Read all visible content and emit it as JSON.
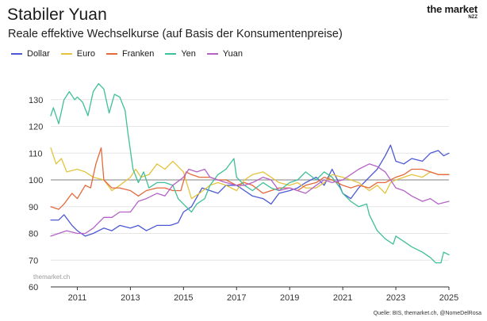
{
  "header": {
    "title": "Stabiler Yuan",
    "subtitle": "Reale effektive Wechselkurse (auf Basis der Konsumentenpreise)",
    "brand": "the market",
    "brand_sub": "NZZ"
  },
  "watermark": "themarket.ch",
  "source": "Quelle: BIS, themarket.ch, @NomeDelRosa",
  "chart_data": {
    "type": "line",
    "title": "Stabiler Yuan",
    "subtitle": "Reale effektive Wechselkurse (auf Basis der Konsumentenpreise)",
    "xlabel": "",
    "ylabel": "",
    "xlim": [
      2010.0,
      2025.0
    ],
    "ylim": [
      60,
      140
    ],
    "x_ticks": [
      2011,
      2013,
      2015,
      2017,
      2019,
      2021,
      2023,
      2025
    ],
    "x_tick_labels": [
      "2011",
      "2013",
      "2015",
      "2017",
      "2019",
      "2021",
      "2023",
      "2025"
    ],
    "y_ticks": [
      60,
      70,
      80,
      90,
      100,
      110,
      120,
      130
    ],
    "y_tick_labels": [
      "60",
      "70",
      "80",
      "90",
      "100",
      "110",
      "120",
      "130"
    ],
    "reference_line": 100,
    "grid": "horizontal",
    "legend_position": "top-left",
    "series": [
      {
        "name": "Dollar",
        "color": "#4c58d4",
        "points": [
          [
            2010.0,
            85
          ],
          [
            2010.3,
            85
          ],
          [
            2010.5,
            87
          ],
          [
            2010.8,
            83
          ],
          [
            2011.0,
            81
          ],
          [
            2011.3,
            79
          ],
          [
            2011.6,
            80
          ],
          [
            2012.0,
            82
          ],
          [
            2012.3,
            81
          ],
          [
            2012.6,
            83
          ],
          [
            2013.0,
            82
          ],
          [
            2013.3,
            83
          ],
          [
            2013.6,
            81
          ],
          [
            2014.0,
            83
          ],
          [
            2014.5,
            83
          ],
          [
            2014.8,
            84
          ],
          [
            2015.0,
            88
          ],
          [
            2015.3,
            90
          ],
          [
            2015.7,
            97
          ],
          [
            2016.0,
            96
          ],
          [
            2016.3,
            95
          ],
          [
            2016.6,
            98
          ],
          [
            2017.0,
            98
          ],
          [
            2017.3,
            96
          ],
          [
            2017.6,
            94
          ],
          [
            2018.0,
            93
          ],
          [
            2018.3,
            91
          ],
          [
            2018.6,
            95
          ],
          [
            2019.0,
            96
          ],
          [
            2019.3,
            97
          ],
          [
            2019.6,
            99
          ],
          [
            2020.0,
            101
          ],
          [
            2020.3,
            98
          ],
          [
            2020.6,
            104
          ],
          [
            2020.8,
            100
          ],
          [
            2021.0,
            95
          ],
          [
            2021.3,
            93
          ],
          [
            2021.6,
            97
          ],
          [
            2021.8,
            99
          ],
          [
            2022.0,
            101
          ],
          [
            2022.3,
            104
          ],
          [
            2022.6,
            109
          ],
          [
            2022.8,
            113
          ],
          [
            2023.0,
            107
          ],
          [
            2023.3,
            106
          ],
          [
            2023.6,
            108
          ],
          [
            2024.0,
            107
          ],
          [
            2024.3,
            110
          ],
          [
            2024.6,
            111
          ],
          [
            2024.8,
            109
          ],
          [
            2025.0,
            110
          ]
        ]
      },
      {
        "name": "Euro",
        "color": "#e3c43e",
        "points": [
          [
            2010.0,
            112
          ],
          [
            2010.2,
            106
          ],
          [
            2010.4,
            108
          ],
          [
            2010.6,
            103
          ],
          [
            2011.0,
            104
          ],
          [
            2011.3,
            103
          ],
          [
            2011.6,
            101
          ],
          [
            2012.0,
            100
          ],
          [
            2012.3,
            96
          ],
          [
            2012.6,
            98
          ],
          [
            2013.0,
            101
          ],
          [
            2013.2,
            104
          ],
          [
            2013.4,
            101
          ],
          [
            2013.7,
            102
          ],
          [
            2014.0,
            106
          ],
          [
            2014.3,
            104
          ],
          [
            2014.6,
            107
          ],
          [
            2015.0,
            103
          ],
          [
            2015.3,
            93
          ],
          [
            2015.6,
            95
          ],
          [
            2016.0,
            98
          ],
          [
            2016.3,
            99
          ],
          [
            2016.6,
            98
          ],
          [
            2017.0,
            96
          ],
          [
            2017.3,
            100
          ],
          [
            2017.6,
            102
          ],
          [
            2018.0,
            103
          ],
          [
            2018.3,
            101
          ],
          [
            2018.6,
            99
          ],
          [
            2019.0,
            98
          ],
          [
            2019.3,
            99
          ],
          [
            2019.6,
            97
          ],
          [
            2020.0,
            97
          ],
          [
            2020.3,
            99
          ],
          [
            2020.6,
            102
          ],
          [
            2021.0,
            101
          ],
          [
            2021.3,
            100
          ],
          [
            2021.6,
            99
          ],
          [
            2022.0,
            96
          ],
          [
            2022.3,
            98
          ],
          [
            2022.6,
            95
          ],
          [
            2022.8,
            99
          ],
          [
            2023.0,
            100
          ],
          [
            2023.3,
            101
          ],
          [
            2023.6,
            102
          ],
          [
            2024.0,
            101
          ],
          [
            2024.3,
            103
          ],
          [
            2024.6,
            102
          ],
          [
            2025.0,
            102
          ]
        ]
      },
      {
        "name": "Franken",
        "color": "#e4693d",
        "points": [
          [
            2010.0,
            90
          ],
          [
            2010.3,
            89
          ],
          [
            2010.5,
            91
          ],
          [
            2010.8,
            95
          ],
          [
            2011.0,
            93
          ],
          [
            2011.3,
            98
          ],
          [
            2011.5,
            97
          ],
          [
            2011.7,
            106
          ],
          [
            2011.9,
            112
          ],
          [
            2012.0,
            100
          ],
          [
            2012.3,
            97
          ],
          [
            2012.6,
            97
          ],
          [
            2013.0,
            96
          ],
          [
            2013.3,
            94
          ],
          [
            2013.6,
            96
          ],
          [
            2014.0,
            97
          ],
          [
            2014.3,
            97
          ],
          [
            2014.6,
            96
          ],
          [
            2014.9,
            96
          ],
          [
            2015.1,
            103
          ],
          [
            2015.3,
            102
          ],
          [
            2015.6,
            101
          ],
          [
            2016.0,
            101
          ],
          [
            2016.3,
            100
          ],
          [
            2016.6,
            100
          ],
          [
            2017.0,
            98
          ],
          [
            2017.3,
            99
          ],
          [
            2017.6,
            98
          ],
          [
            2018.0,
            95
          ],
          [
            2018.3,
            96
          ],
          [
            2018.6,
            97
          ],
          [
            2019.0,
            97
          ],
          [
            2019.3,
            96
          ],
          [
            2019.6,
            98
          ],
          [
            2020.0,
            99
          ],
          [
            2020.3,
            101
          ],
          [
            2020.6,
            100
          ],
          [
            2021.0,
            98
          ],
          [
            2021.3,
            97
          ],
          [
            2021.6,
            98
          ],
          [
            2022.0,
            97
          ],
          [
            2022.3,
            99
          ],
          [
            2022.6,
            99
          ],
          [
            2023.0,
            101
          ],
          [
            2023.3,
            102
          ],
          [
            2023.6,
            104
          ],
          [
            2024.0,
            104
          ],
          [
            2024.3,
            103
          ],
          [
            2024.6,
            102
          ],
          [
            2025.0,
            102
          ]
        ]
      },
      {
        "name": "Yen",
        "color": "#3fbf9a",
        "points": [
          [
            2010.0,
            124
          ],
          [
            2010.1,
            127
          ],
          [
            2010.3,
            121
          ],
          [
            2010.5,
            130
          ],
          [
            2010.7,
            133
          ],
          [
            2010.9,
            130
          ],
          [
            2011.0,
            131
          ],
          [
            2011.2,
            129
          ],
          [
            2011.4,
            124
          ],
          [
            2011.6,
            133
          ],
          [
            2011.8,
            136
          ],
          [
            2012.0,
            134
          ],
          [
            2012.2,
            125
          ],
          [
            2012.4,
            132
          ],
          [
            2012.6,
            131
          ],
          [
            2012.8,
            126
          ],
          [
            2012.9,
            118
          ],
          [
            2013.1,
            104
          ],
          [
            2013.3,
            99
          ],
          [
            2013.5,
            103
          ],
          [
            2013.7,
            97
          ],
          [
            2014.0,
            99
          ],
          [
            2014.3,
            99
          ],
          [
            2014.6,
            98
          ],
          [
            2014.8,
            93
          ],
          [
            2015.0,
            91
          ],
          [
            2015.3,
            88
          ],
          [
            2015.5,
            91
          ],
          [
            2015.8,
            93
          ],
          [
            2016.0,
            98
          ],
          [
            2016.3,
            102
          ],
          [
            2016.6,
            104
          ],
          [
            2016.9,
            108
          ],
          [
            2017.0,
            101
          ],
          [
            2017.3,
            98
          ],
          [
            2017.6,
            96
          ],
          [
            2018.0,
            99
          ],
          [
            2018.3,
            97
          ],
          [
            2018.6,
            96
          ],
          [
            2019.0,
            99
          ],
          [
            2019.3,
            100
          ],
          [
            2019.6,
            103
          ],
          [
            2020.0,
            100
          ],
          [
            2020.3,
            103
          ],
          [
            2020.6,
            101
          ],
          [
            2020.9,
            97
          ],
          [
            2021.0,
            95
          ],
          [
            2021.3,
            92
          ],
          [
            2021.6,
            90
          ],
          [
            2021.9,
            91
          ],
          [
            2022.0,
            87
          ],
          [
            2022.3,
            81
          ],
          [
            2022.6,
            78
          ],
          [
            2022.9,
            76
          ],
          [
            2023.0,
            79
          ],
          [
            2023.3,
            77
          ],
          [
            2023.6,
            75
          ],
          [
            2024.0,
            73
          ],
          [
            2024.3,
            71
          ],
          [
            2024.5,
            69
          ],
          [
            2024.7,
            69
          ],
          [
            2024.8,
            73
          ],
          [
            2025.0,
            72
          ]
        ]
      },
      {
        "name": "Yuan",
        "color": "#b562c7",
        "points": [
          [
            2010.0,
            79
          ],
          [
            2010.3,
            80
          ],
          [
            2010.6,
            81
          ],
          [
            2011.0,
            80
          ],
          [
            2011.3,
            80
          ],
          [
            2011.6,
            82
          ],
          [
            2012.0,
            86
          ],
          [
            2012.3,
            86
          ],
          [
            2012.6,
            88
          ],
          [
            2013.0,
            88
          ],
          [
            2013.3,
            92
          ],
          [
            2013.6,
            93
          ],
          [
            2014.0,
            95
          ],
          [
            2014.3,
            94
          ],
          [
            2014.6,
            98
          ],
          [
            2015.0,
            101
          ],
          [
            2015.2,
            104
          ],
          [
            2015.5,
            103
          ],
          [
            2015.8,
            104
          ],
          [
            2016.0,
            101
          ],
          [
            2016.3,
            100
          ],
          [
            2016.6,
            99
          ],
          [
            2017.0,
            98
          ],
          [
            2017.3,
            98
          ],
          [
            2017.6,
            99
          ],
          [
            2018.0,
            101
          ],
          [
            2018.3,
            100
          ],
          [
            2018.6,
            96
          ],
          [
            2019.0,
            97
          ],
          [
            2019.3,
            96
          ],
          [
            2019.6,
            95
          ],
          [
            2020.0,
            98
          ],
          [
            2020.3,
            100
          ],
          [
            2020.6,
            99
          ],
          [
            2021.0,
            100
          ],
          [
            2021.3,
            102
          ],
          [
            2021.6,
            104
          ],
          [
            2022.0,
            106
          ],
          [
            2022.3,
            105
          ],
          [
            2022.6,
            103
          ],
          [
            2023.0,
            97
          ],
          [
            2023.3,
            96
          ],
          [
            2023.6,
            94
          ],
          [
            2024.0,
            92
          ],
          [
            2024.3,
            93
          ],
          [
            2024.6,
            91
          ],
          [
            2025.0,
            92
          ]
        ]
      }
    ]
  }
}
